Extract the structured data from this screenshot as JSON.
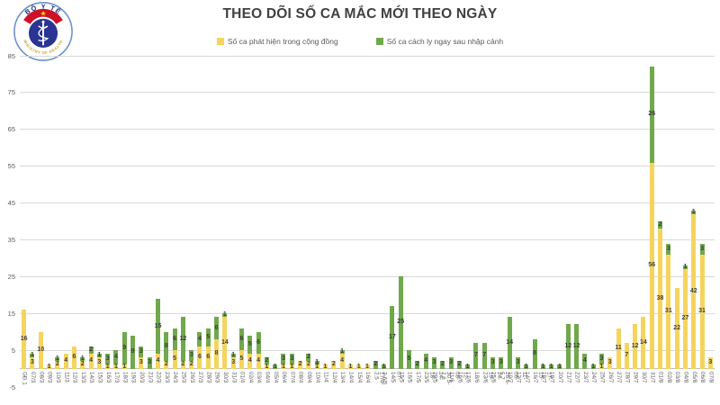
{
  "page_title": "THEO DÕI SỐ CA MẮC MỚI THEO NGÀY",
  "logo": {
    "top_text": "BỘ Y TẾ",
    "bottom_text": "MINISTRY OF HEALTH"
  },
  "colors": {
    "community_yellow": "#F5D45E",
    "imported_green": "#70A84C",
    "title_text": "#404040",
    "axis_text": "#595959",
    "gridline": "#D9D9D9",
    "axis_line": "#BFBFBF",
    "logo_navy": "#2A3492",
    "logo_red": "#CE1126",
    "logo_gold": "#C9A227",
    "logo_star": "#FFDE00"
  },
  "chart_data": {
    "type": "bar",
    "stacked": true,
    "title": "THEO DÕI SỐ CA MẮC MỚI THEO NGÀY",
    "grid": true,
    "legend_position": "top",
    "ylim": [
      -5,
      85
    ],
    "yticks": [
      -5,
      5,
      15,
      25,
      35,
      45,
      55,
      65,
      75,
      85
    ],
    "categories": [
      "GĐ.1",
      "07/3",
      "08/3",
      "09/3",
      "10/3",
      "11/3",
      "12/3",
      "13/3",
      "14/3",
      "15/3",
      "16/3",
      "17/3",
      "18/3",
      "19/3",
      "20/3",
      "21/3",
      "22/3",
      "23/3",
      "24/3",
      "25/3",
      "26/3",
      "27/3",
      "28/3",
      "29/3",
      "30/3",
      "31/3",
      "01/4",
      "02/4",
      "03/4",
      "04/4",
      "05/4",
      "06/4",
      "07/4",
      "08/4",
      "09/4",
      "10/4",
      "11/4",
      "12/4",
      "13/4",
      "14/4",
      "15/4",
      "16/4",
      "17/4-2.5",
      "3-6/5",
      "07-14/5",
      "15/5",
      "16/5",
      "17/5",
      "18-23/5",
      "24-29/5",
      "30.5-7.6",
      "08-11/6",
      "12-16/6",
      "17/6",
      "18/6",
      "19-23/6",
      "24-25/6",
      "26.6-5.7",
      "06-10/7",
      "11-13/7",
      "14/7",
      "15-16/7",
      "17-18/7",
      "19/7",
      "20/7",
      "21/7",
      "22/7",
      "23/7",
      "24/7",
      "25/7",
      "26/7",
      "27/7",
      "28/7",
      "29/7",
      "30/7",
      "31/7",
      "01/8",
      "02/8",
      "03/8",
      "04/8",
      "05/8",
      "06/8",
      "07/8"
    ],
    "series": [
      {
        "name": "Số ca phát hiện trong cộng đồng",
        "color": "#F5D45E",
        "values": [
          16,
          3,
          10,
          1,
          2,
          4,
          6,
          2,
          4,
          3,
          1,
          1,
          1,
          0,
          3,
          0,
          4,
          2,
          5,
          2,
          2,
          6,
          6,
          8,
          14,
          3,
          5,
          4,
          4,
          1,
          0,
          1,
          1,
          2,
          2,
          1,
          1,
          2,
          4,
          1,
          1,
          1,
          0,
          0,
          0,
          0,
          0,
          0,
          0,
          0,
          0,
          0,
          0,
          0,
          0,
          0,
          0,
          0,
          0,
          0,
          0,
          0,
          0,
          0,
          0,
          0,
          0,
          0,
          0,
          1,
          3,
          11,
          7,
          12,
          14,
          56,
          38,
          31,
          22,
          27,
          42,
          31,
          3
        ]
      },
      {
        "name": "Số ca cách ly ngay sau nhập cảnh",
        "color": "#70A84C",
        "values": [
          0,
          1,
          0,
          0,
          1,
          0,
          0,
          1,
          2,
          1,
          3,
          4,
          9,
          9,
          3,
          3,
          15,
          8,
          6,
          12,
          3,
          4,
          5,
          6,
          1,
          1,
          6,
          5,
          6,
          2,
          1,
          3,
          3,
          0,
          2,
          1,
          0,
          0,
          1,
          0,
          0,
          0,
          2,
          1,
          17,
          25,
          5,
          2,
          4,
          3,
          2,
          3,
          2,
          1,
          7,
          7,
          3,
          3,
          14,
          3,
          1,
          8,
          1,
          1,
          1,
          12,
          12,
          4,
          1,
          3,
          0,
          0,
          0,
          0,
          0,
          26,
          2,
          3,
          0,
          1,
          1,
          3,
          0
        ]
      }
    ]
  }
}
